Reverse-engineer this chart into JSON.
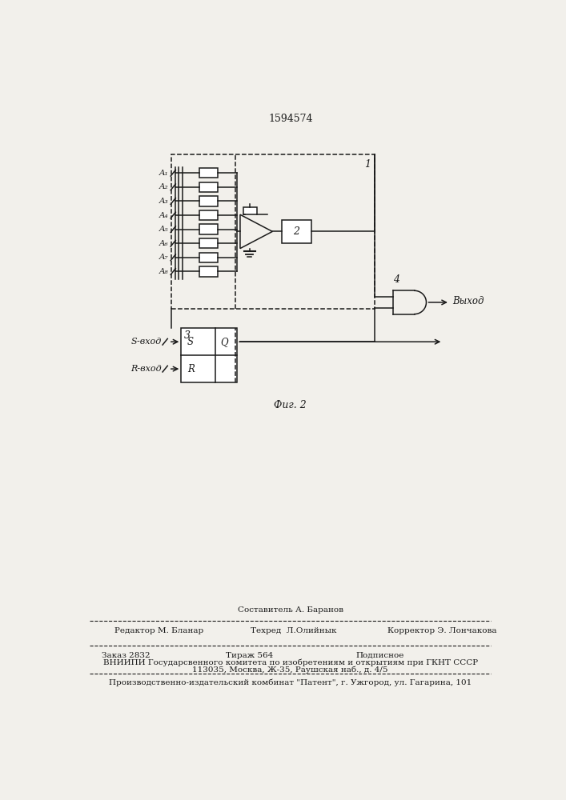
{
  "title": "1594574",
  "fig_label": "Фиг. 2",
  "bg_color": "#f2f0eb",
  "inputs": [
    "A₁",
    "A₂",
    "A₃",
    "A₄",
    "A₅",
    "A₆",
    "A₇",
    "A₈"
  ],
  "block1_label": "1",
  "block2_label": "2",
  "block3_label": "3",
  "block4_label": "4",
  "s_input_label": "S-вход",
  "r_input_label": "R-вход",
  "output_label": "Выход",
  "bottom_text_sostavitel": "Составитель А. Баранов",
  "bottom_text_editor": "Редактор М. Бланар",
  "bottom_text_techred": "Техред  Л.Олийнык",
  "bottom_text_corrector": "Корректор Э. Лончакова",
  "bottom_text_zakaz": "Заказ 2832",
  "bottom_text_tirazh": "Тираж 564",
  "bottom_text_podpisnoe": "Подписное",
  "bottom_text_vniip": "ВНИИПИ Государсвенного комитета по изобретениям и открытиям при ГКНТ СССР",
  "bottom_text_address": "113035, Москва, Ж-35, Раушская наб., д. 4/5",
  "bottom_text_factory": "Производственно-издательский комбинат \"Патент\", г. Ужгород, ул. Гагарина, 101"
}
